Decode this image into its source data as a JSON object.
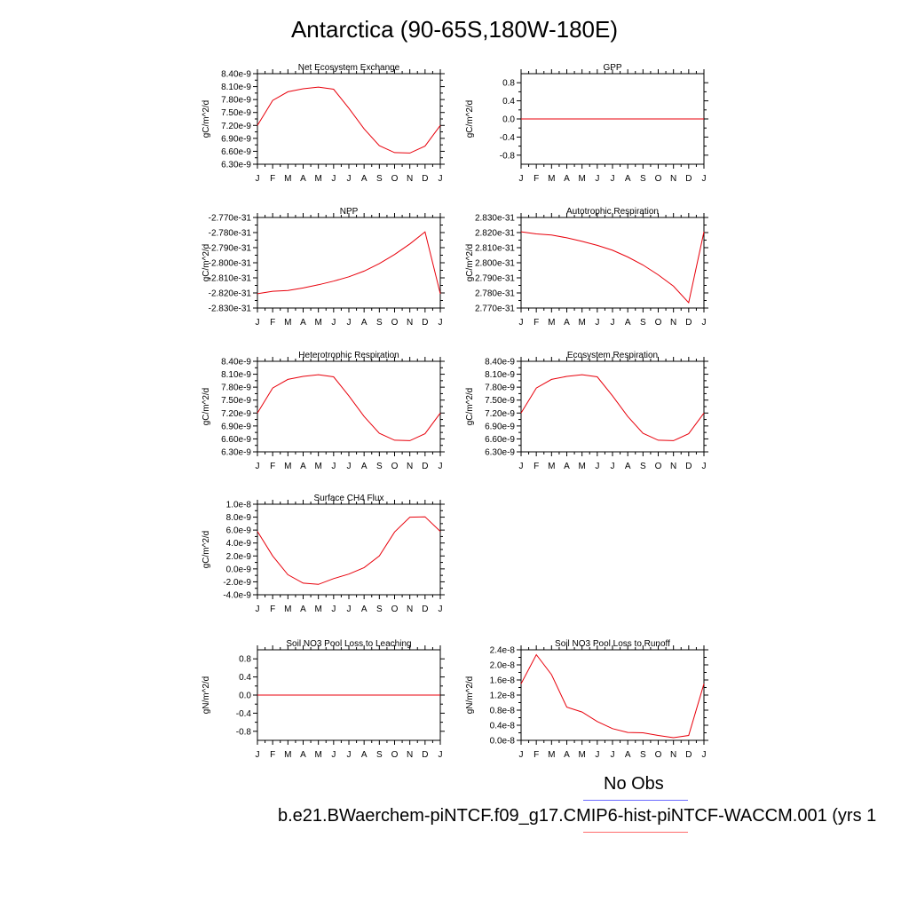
{
  "title": "Antarctica (90-65S,180W-180E)",
  "months": [
    "J",
    "F",
    "M",
    "A",
    "M",
    "J",
    "J",
    "A",
    "S",
    "O",
    "N",
    "D",
    "J"
  ],
  "legend": {
    "obs_label": "No Obs",
    "obs_color": "#6a6aff",
    "case_label": "b.e21.BWaerchem-piNTCF.f09_g17.CMIP6-hist-piNTCF-WACCM.001 (yrs 1",
    "case_color": "#ff6b6b"
  },
  "line_color": "#e8000b",
  "chart_data": [
    {
      "type": "line",
      "title": "Net Ecosystem Exchange",
      "ylabel": "gC/m^2/d",
      "ylim": [
        6.3e-09,
        8.4e-09
      ],
      "yticks": [
        6.3e-09,
        6.6e-09,
        6.9e-09,
        7.2e-09,
        7.5e-09,
        7.8e-09,
        8.1e-09,
        8.4e-09
      ],
      "yticklabels": [
        "6.30e-9",
        "6.60e-9",
        "6.90e-9",
        "7.20e-9",
        "7.50e-9",
        "7.80e-9",
        "8.10e-9",
        "8.40e-9"
      ],
      "values": [
        7.2e-09,
        7.78e-09,
        7.98e-09,
        8.05e-09,
        8.09e-09,
        8.04e-09,
        7.6e-09,
        7.12e-09,
        6.73e-09,
        6.57e-09,
        6.56e-09,
        6.72e-09,
        7.2e-09
      ]
    },
    {
      "type": "line",
      "title": "GPP",
      "ylabel": "gC/m^2/d",
      "ylim": [
        -1.0,
        1.0
      ],
      "yticks": [
        -0.8,
        -0.4,
        0.0,
        0.4,
        0.8
      ],
      "yticklabels": [
        "-0.8",
        "-0.4",
        "0.0",
        "0.4",
        "0.8"
      ],
      "values": [
        0,
        0,
        0,
        0,
        0,
        0,
        0,
        0,
        0,
        0,
        0,
        0,
        0
      ]
    },
    {
      "type": "line",
      "title": "NPP",
      "ylabel": "gC/m^2/d",
      "ylim": [
        -2.83e-31,
        -2.77e-31
      ],
      "yticks": [
        -2.83e-31,
        -2.82e-31,
        -2.81e-31,
        -2.8e-31,
        -2.79e-31,
        -2.78e-31,
        -2.77e-31
      ],
      "yticklabels": [
        "-2.830e-31",
        "-2.820e-31",
        "-2.810e-31",
        "-2.800e-31",
        "-2.790e-31",
        "-2.780e-31",
        "-2.770e-31"
      ],
      "values": [
        -2.8205e-31,
        -2.8189e-31,
        -2.8184e-31,
        -2.8167e-31,
        -2.8146e-31,
        -2.8122e-31,
        -2.8093e-31,
        -2.8055e-31,
        -2.8005e-31,
        -2.7945e-31,
        -2.7875e-31,
        -2.7795e-31,
        -2.8205e-31
      ]
    },
    {
      "type": "line",
      "title": "Autotrophic Respiration",
      "ylabel": "gC/m^2/d",
      "ylim": [
        2.77e-31,
        2.83e-31
      ],
      "yticks": [
        2.77e-31,
        2.78e-31,
        2.79e-31,
        2.8e-31,
        2.81e-31,
        2.82e-31,
        2.83e-31
      ],
      "yticklabels": [
        "2.770e-31",
        "2.780e-31",
        "2.790e-31",
        "2.800e-31",
        "2.810e-31",
        "2.820e-31",
        "2.830e-31"
      ],
      "values": [
        2.8205e-31,
        2.8191e-31,
        2.8184e-31,
        2.8165e-31,
        2.8142e-31,
        2.8115e-31,
        2.8083e-31,
        2.8038e-31,
        2.7985e-31,
        2.792e-31,
        2.7845e-31,
        2.7735e-31,
        2.8205e-31
      ]
    },
    {
      "type": "line",
      "title": "Heterotrophic Respiration",
      "ylabel": "gC/m^2/d",
      "ylim": [
        6.3e-09,
        8.4e-09
      ],
      "yticks": [
        6.3e-09,
        6.6e-09,
        6.9e-09,
        7.2e-09,
        7.5e-09,
        7.8e-09,
        8.1e-09,
        8.4e-09
      ],
      "yticklabels": [
        "6.30e-9",
        "6.60e-9",
        "6.90e-9",
        "7.20e-9",
        "7.50e-9",
        "7.80e-9",
        "8.10e-9",
        "8.40e-9"
      ],
      "values": [
        7.2e-09,
        7.78e-09,
        7.98e-09,
        8.05e-09,
        8.09e-09,
        8.04e-09,
        7.6e-09,
        7.12e-09,
        6.73e-09,
        6.57e-09,
        6.56e-09,
        6.72e-09,
        7.2e-09
      ]
    },
    {
      "type": "line",
      "title": "Ecosystem Respiration",
      "ylabel": "gC/m^2/d",
      "ylim": [
        6.3e-09,
        8.4e-09
      ],
      "yticks": [
        6.3e-09,
        6.6e-09,
        6.9e-09,
        7.2e-09,
        7.5e-09,
        7.8e-09,
        8.1e-09,
        8.4e-09
      ],
      "yticklabels": [
        "6.30e-9",
        "6.60e-9",
        "6.90e-9",
        "7.20e-9",
        "7.50e-9",
        "7.80e-9",
        "8.10e-9",
        "8.40e-9"
      ],
      "values": [
        7.2e-09,
        7.78e-09,
        7.98e-09,
        8.05e-09,
        8.09e-09,
        8.04e-09,
        7.6e-09,
        7.12e-09,
        6.73e-09,
        6.57e-09,
        6.56e-09,
        6.72e-09,
        7.2e-09
      ]
    },
    {
      "type": "line",
      "title": "Surface CH4 Flux",
      "ylabel": "gC/m^2/d",
      "ylim": [
        -4e-09,
        1e-08
      ],
      "yticks": [
        -4e-09,
        -2e-09,
        0.0,
        2e-09,
        4e-09,
        6e-09,
        8e-09,
        1e-08
      ],
      "yticklabels": [
        "-4.0e-9",
        "-2.0e-9",
        "0.0e-9",
        "2.0e-9",
        "4.0e-9",
        "6.0e-9",
        "8.0e-9",
        "1.0e-8"
      ],
      "values": [
        5.8e-09,
        2e-09,
        -9e-10,
        -2.2e-09,
        -2.4e-09,
        -1.5e-09,
        -8e-10,
        2e-10,
        2e-09,
        5.7e-09,
        8e-09,
        8.05e-09,
        5.8e-09
      ]
    },
    {
      "type": "line",
      "title": "Soil NO3 Pool Loss to Leaching",
      "ylabel": "gN/m^2/d",
      "ylim": [
        -1.0,
        1.0
      ],
      "yticks": [
        -0.8,
        -0.4,
        0.0,
        0.4,
        0.8
      ],
      "yticklabels": [
        "-0.8",
        "-0.4",
        "0.0",
        "0.4",
        "0.8"
      ],
      "values": [
        0,
        0,
        0,
        0,
        0,
        0,
        0,
        0,
        0,
        0,
        0,
        0,
        0
      ]
    },
    {
      "type": "line",
      "title": "Soil NO3 Pool Loss to Runoff",
      "ylabel": "gN/m^2/d",
      "ylim": [
        0.0,
        2.4e-08
      ],
      "yticks": [
        0.0,
        4e-09,
        8e-09,
        1.2e-08,
        1.6e-08,
        2e-08,
        2.4e-08
      ],
      "yticklabels": [
        "0.0e-8",
        "0.4e-8",
        "0.8e-8",
        "1.2e-8",
        "1.6e-8",
        "2.0e-8",
        "2.4e-8"
      ],
      "values": [
        1.5e-08,
        2.27e-08,
        1.74e-08,
        8.8e-09,
        7.5e-09,
        5e-09,
        3.1e-09,
        2.1e-09,
        2e-09,
        1.3e-09,
        7e-10,
        1.3e-09,
        1.5e-08
      ]
    }
  ]
}
